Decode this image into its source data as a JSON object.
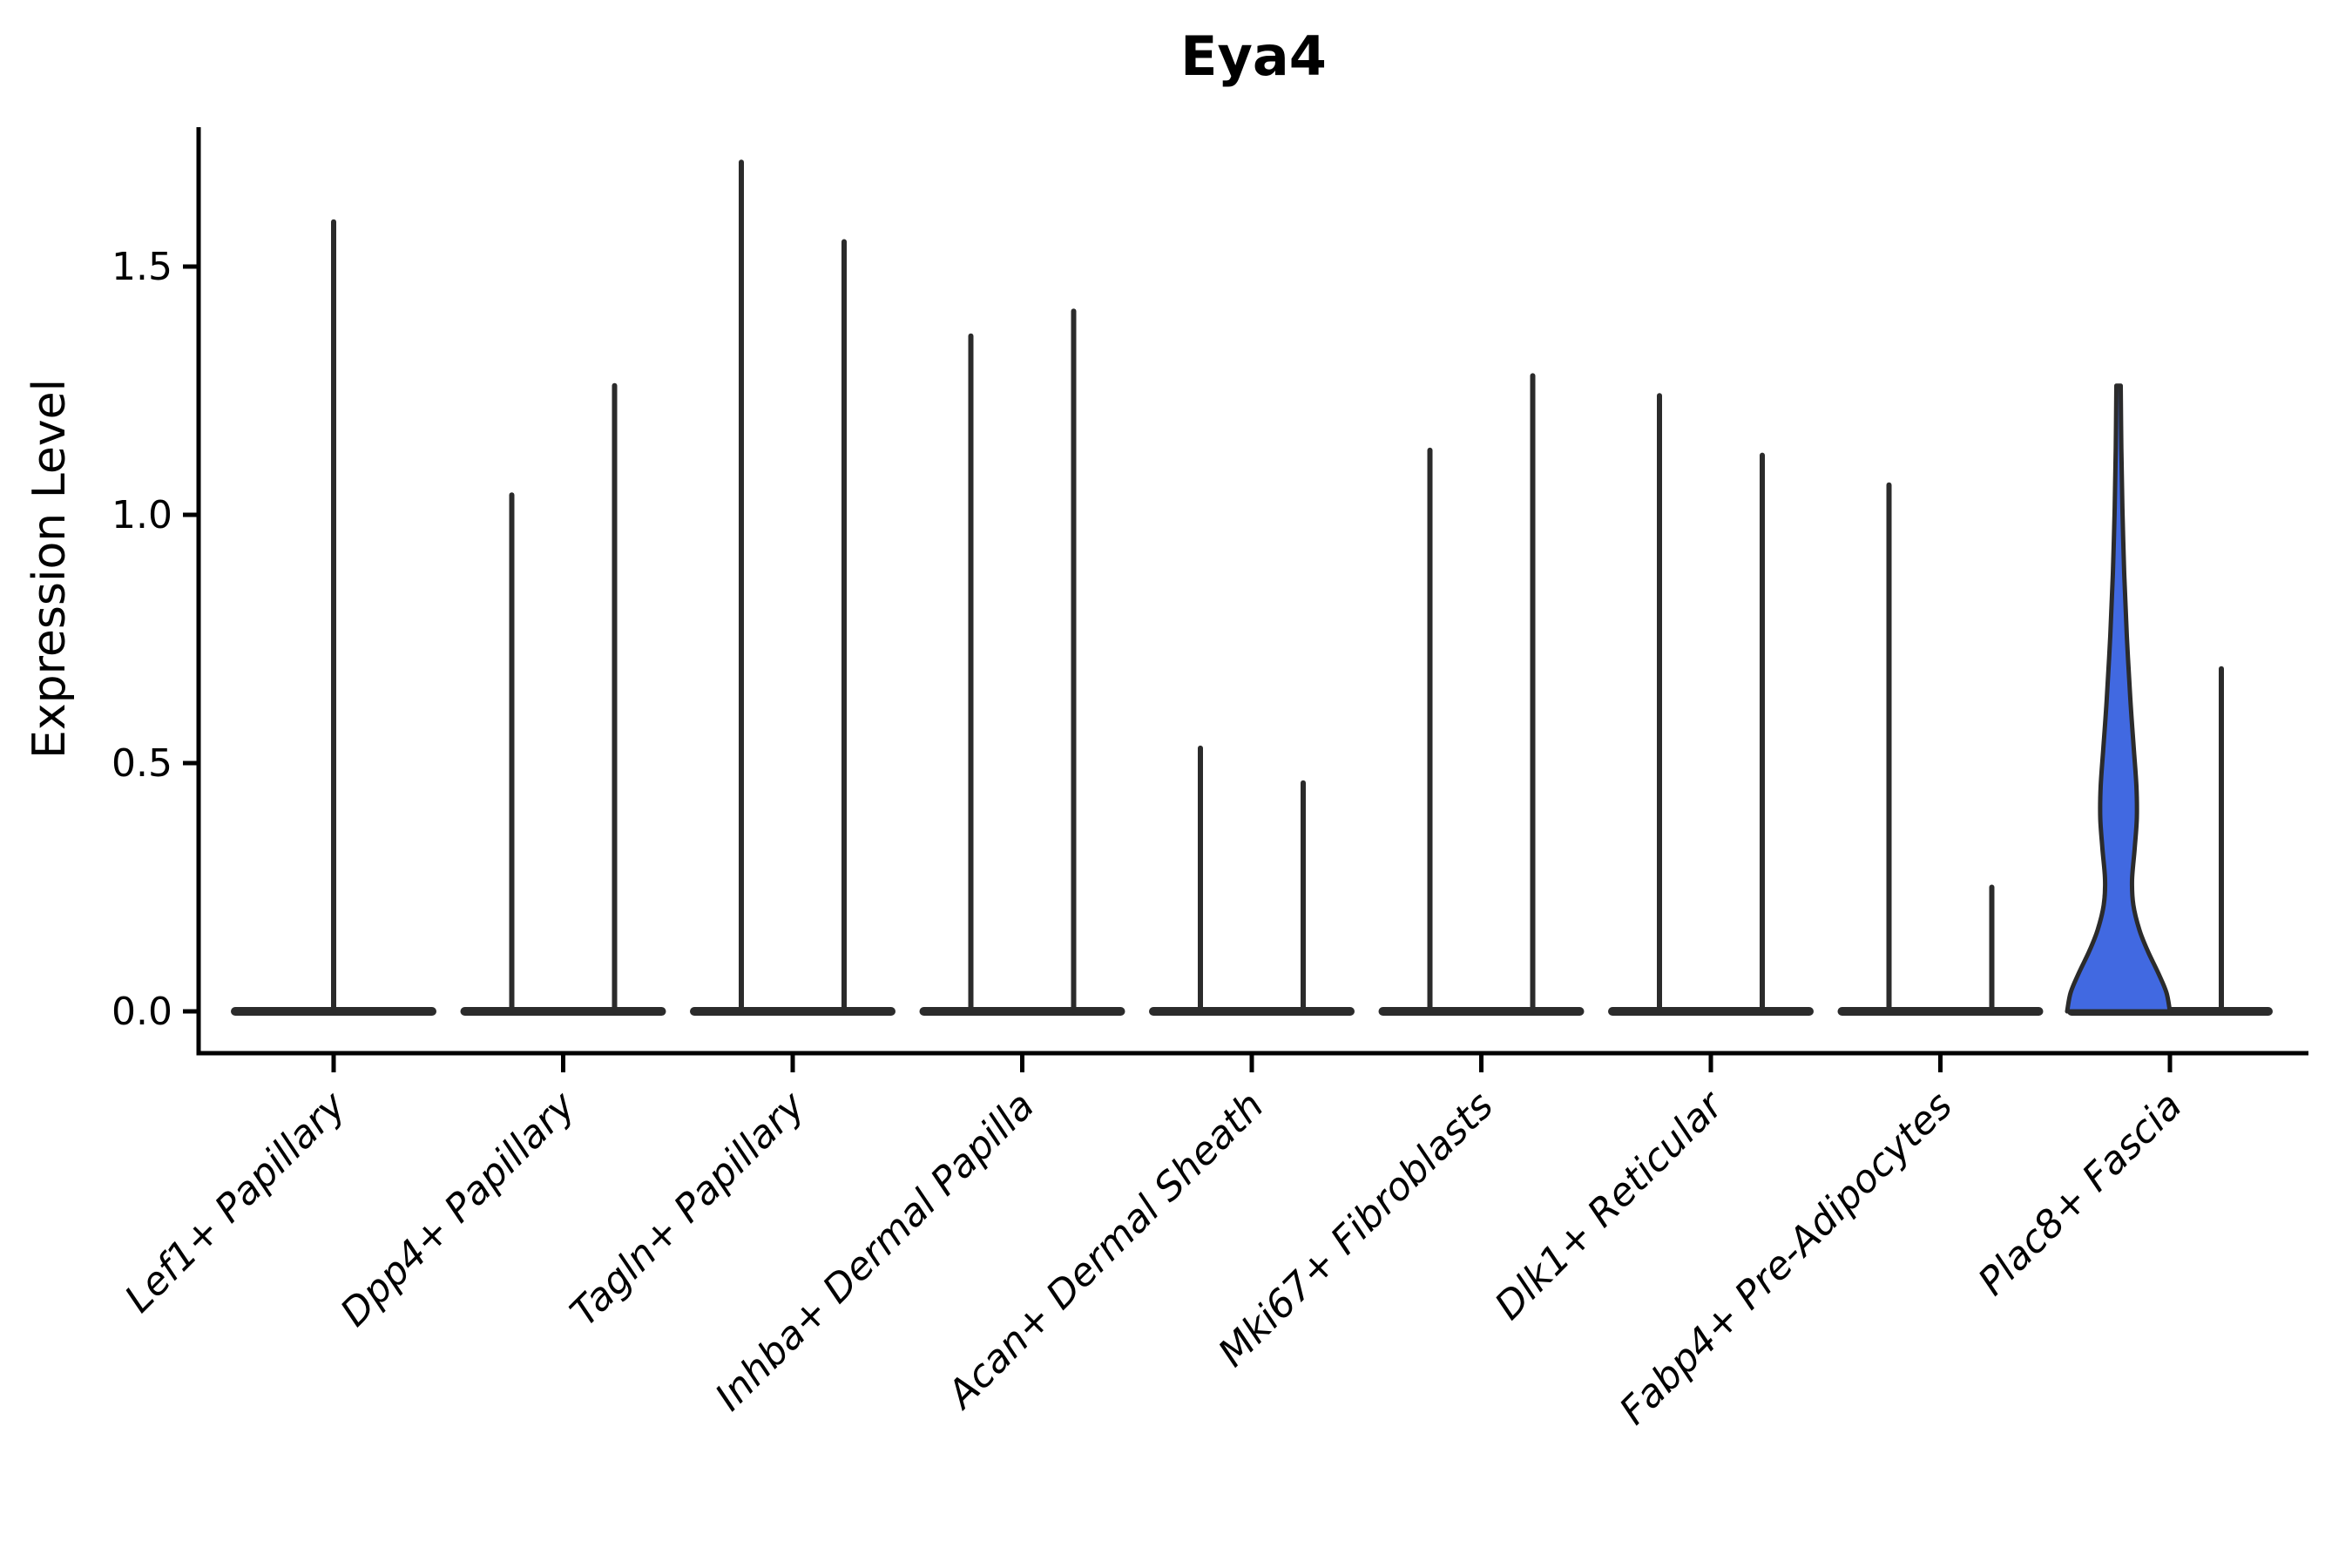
{
  "figure": {
    "background": "#ffffff"
  },
  "chart_data": {
    "type": "violin",
    "title": "Eya4",
    "ylabel": "Expression Level",
    "xlabel": "",
    "legend": "none",
    "grid": false,
    "plot_background": "#ffffff",
    "ylim": [
      -0.084,
      1.78
    ],
    "yticks": [
      {
        "label": "0.0",
        "value": 0.0
      },
      {
        "label": "0.5",
        "value": 0.5
      },
      {
        "label": "1.0",
        "value": 1.0
      },
      {
        "label": "1.5",
        "value": 1.5
      }
    ],
    "categories": [
      "Lef1+ Papillary",
      "Dpp4+ Papillary",
      "Tagln+ Papillary",
      "Inhba+ Dermal Papilla",
      "Acan+ Dermal Sheath",
      "Mki67+ Fibroblasts",
      "Dlk1+ Reticular",
      "Fabp4+ Pre-Adipocytes",
      "Plac8+ Fascia"
    ],
    "series": [
      {
        "category": "Lef1+ Papillary",
        "violins": [
          {
            "pos": "center",
            "max_expression": 1.59,
            "filled": false
          }
        ]
      },
      {
        "category": "Dpp4+ Papillary",
        "violins": [
          {
            "pos": "left",
            "max_expression": 1.04,
            "filled": false
          },
          {
            "pos": "right",
            "max_expression": 1.26,
            "filled": false
          }
        ]
      },
      {
        "category": "Tagln+ Papillary",
        "violins": [
          {
            "pos": "left",
            "max_expression": 1.71,
            "filled": false
          },
          {
            "pos": "right",
            "max_expression": 1.55,
            "filled": false
          }
        ]
      },
      {
        "category": "Inhba+ Dermal Papilla",
        "violins": [
          {
            "pos": "left",
            "max_expression": 1.36,
            "filled": false
          },
          {
            "pos": "right",
            "max_expression": 1.41,
            "filled": false
          }
        ]
      },
      {
        "category": "Acan+ Dermal Sheath",
        "violins": [
          {
            "pos": "left",
            "max_expression": 0.53,
            "filled": false
          },
          {
            "pos": "right",
            "max_expression": 0.46,
            "filled": false
          }
        ]
      },
      {
        "category": "Mki67+ Fibroblasts",
        "violins": [
          {
            "pos": "left",
            "max_expression": 1.13,
            "filled": false
          },
          {
            "pos": "right",
            "max_expression": 1.28,
            "filled": false
          }
        ]
      },
      {
        "category": "Dlk1+ Reticular",
        "violins": [
          {
            "pos": "left",
            "max_expression": 1.24,
            "filled": false
          },
          {
            "pos": "right",
            "max_expression": 1.12,
            "filled": false
          }
        ]
      },
      {
        "category": "Fabp4+ Pre-Adipocytes",
        "violins": [
          {
            "pos": "left",
            "max_expression": 1.06,
            "filled": false
          },
          {
            "pos": "right",
            "max_expression": 0.25,
            "filled": false
          }
        ]
      },
      {
        "category": "Plac8+ Fascia",
        "violins": [
          {
            "pos": "left",
            "max_expression": 1.26,
            "filled": true,
            "fill_color": "#4169e1",
            "body": "wide-base-bulge"
          },
          {
            "pos": "right",
            "max_expression": 0.69,
            "filled": false
          }
        ]
      }
    ],
    "colors": {
      "violin_outline": "#2b2b2b",
      "axis": "#000000",
      "highlight_fill": "#4169e1",
      "background": "#ffffff"
    }
  }
}
